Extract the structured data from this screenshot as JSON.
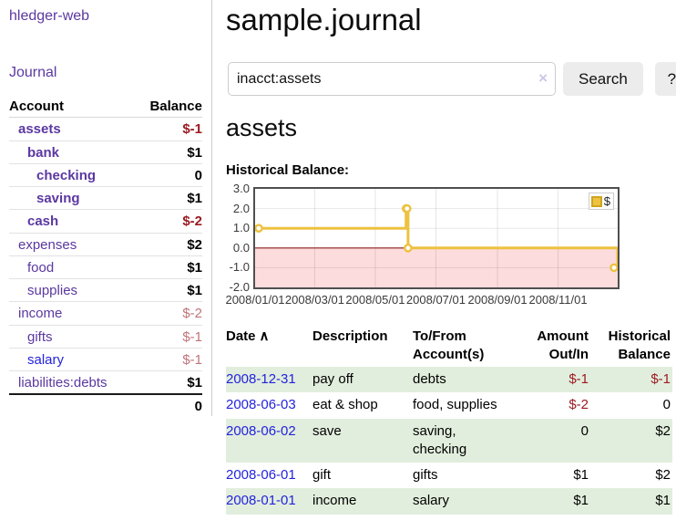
{
  "sidebar": {
    "brand": "hledger-web",
    "journal_link": "Journal",
    "account_header": "Account",
    "balance_header": "Balance",
    "accounts": [
      {
        "name": "assets",
        "indent": 0,
        "balance": "$-1",
        "matched": true,
        "balance_style": "neg-strong",
        "link_style": "visited"
      },
      {
        "name": "bank",
        "indent": 1,
        "balance": "$1",
        "matched": true,
        "balance_style": "normal",
        "link_style": "visited"
      },
      {
        "name": "checking",
        "indent": 2,
        "balance": "0",
        "matched": true,
        "balance_style": "normal",
        "link_style": "visited"
      },
      {
        "name": "saving",
        "indent": 2,
        "balance": "$1",
        "matched": true,
        "balance_style": "normal",
        "link_style": "visited"
      },
      {
        "name": "cash",
        "indent": 1,
        "balance": "$-2",
        "matched": true,
        "balance_style": "neg-strong",
        "link_style": "visited"
      },
      {
        "name": "expenses",
        "indent": 0,
        "balance": "$2",
        "matched": false,
        "balance_style": "normal",
        "link_style": "visited"
      },
      {
        "name": "food",
        "indent": 1,
        "balance": "$1",
        "matched": false,
        "balance_style": "normal",
        "link_style": "visited"
      },
      {
        "name": "supplies",
        "indent": 1,
        "balance": "$1",
        "matched": false,
        "balance_style": "normal",
        "link_style": "visited"
      },
      {
        "name": "income",
        "indent": 0,
        "balance": "$-2",
        "matched": false,
        "balance_style": "neg-soft",
        "link_style": "visited"
      },
      {
        "name": "gifts",
        "indent": 1,
        "balance": "$-1",
        "matched": false,
        "balance_style": "neg-soft",
        "link_style": "visited"
      },
      {
        "name": "salary",
        "indent": 1,
        "balance": "$-1",
        "matched": false,
        "balance_style": "neg-soft",
        "link_style": "fresh"
      },
      {
        "name": "liabilities:debts",
        "indent": 0,
        "balance": "$1",
        "matched": false,
        "balance_style": "normal",
        "link_style": "visited"
      }
    ],
    "total": "0"
  },
  "header": {
    "title": "sample.journal"
  },
  "search": {
    "value": "inacct:assets",
    "clear_icon": "×",
    "button_label": "Search",
    "help_label": "?"
  },
  "account_page": {
    "heading": "assets",
    "chart_title": "Historical Balance:"
  },
  "chart_data": {
    "type": "line",
    "step": true,
    "title": "Historical Balance",
    "series": [
      {
        "name": "$",
        "points": [
          [
            "2008-01-01",
            1
          ],
          [
            "2008-06-01",
            2
          ],
          [
            "2008-06-02",
            2
          ],
          [
            "2008-06-03",
            0
          ],
          [
            "2008-12-31",
            -1
          ]
        ]
      }
    ],
    "x_ticks": [
      "2008/01/01",
      "2008/03/01",
      "2008/05/01",
      "2008/07/01",
      "2008/09/01",
      "2008/11/01"
    ],
    "y_ticks": [
      3.0,
      2.0,
      1.0,
      0.0,
      -1.0,
      -2.0
    ],
    "xlim": [
      "2008-01-01",
      "2008-12-31"
    ],
    "ylim": [
      -2,
      3
    ],
    "legend": {
      "label": "$",
      "position": "top-right"
    },
    "grid": true,
    "line_color": "#edc240",
    "marker_fill": "#ffffff",
    "negative_region_fill": "#fcdcdc",
    "zero_line_color": "#8b1a1a"
  },
  "register": {
    "columns": [
      "Date",
      "Description",
      "To/From Account(s)",
      "Amount Out/In",
      "Historical Balance"
    ],
    "sort_icon": "∧",
    "rows": [
      {
        "date": "2008-12-31",
        "description": "pay off",
        "accounts": "debts",
        "amount": "$-1",
        "balance": "$-1",
        "amount_negative": true,
        "balance_negative": true,
        "shaded": true
      },
      {
        "date": "2008-06-03",
        "description": "eat & shop",
        "accounts": "food, supplies",
        "amount": "$-2",
        "balance": "0",
        "amount_negative": true,
        "balance_negative": false,
        "shaded": false
      },
      {
        "date": "2008-06-02",
        "description": "save",
        "accounts": "saving, checking",
        "amount": "0",
        "balance": "$2",
        "amount_negative": false,
        "balance_negative": false,
        "shaded": true
      },
      {
        "date": "2008-06-01",
        "description": "gift",
        "accounts": "gifts",
        "amount": "$1",
        "balance": "$2",
        "amount_negative": false,
        "balance_negative": false,
        "shaded": false
      },
      {
        "date": "2008-01-01",
        "description": "income",
        "accounts": "salary",
        "amount": "$1",
        "balance": "$1",
        "amount_negative": false,
        "balance_negative": false,
        "shaded": true
      }
    ]
  }
}
